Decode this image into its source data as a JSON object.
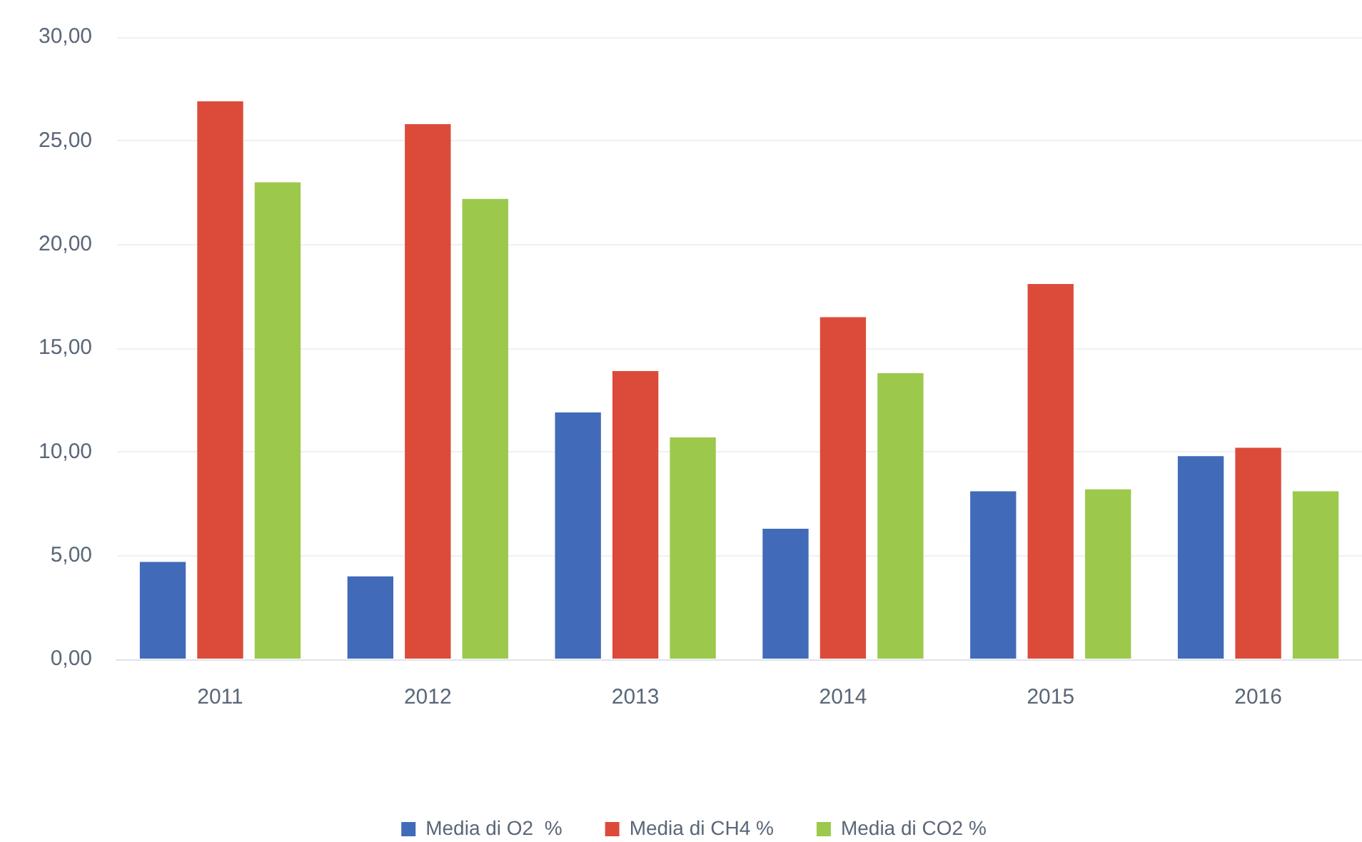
{
  "chart_data": {
    "type": "bar",
    "categories": [
      "2011",
      "2012",
      "2013",
      "2014",
      "2015",
      "2016"
    ],
    "series": [
      {
        "name": "Media di O2  %",
        "color": "#416bb9",
        "values": [
          4.7,
          4.0,
          11.9,
          6.3,
          8.1,
          9.8
        ]
      },
      {
        "name": "Media di CH4 %",
        "color": "#dc4b3a",
        "values": [
          26.9,
          25.8,
          13.9,
          16.5,
          18.1,
          10.2
        ]
      },
      {
        "name": "Media di CO2 %",
        "color": "#9cc84c",
        "values": [
          23.0,
          22.2,
          10.7,
          13.8,
          8.2,
          8.1
        ]
      }
    ],
    "ylim": [
      0,
      30
    ],
    "yticks": [
      {
        "value": 0,
        "label": "0,00"
      },
      {
        "value": 5,
        "label": "5,00"
      },
      {
        "value": 10,
        "label": "10,00"
      },
      {
        "value": 15,
        "label": "15,00"
      },
      {
        "value": 20,
        "label": "20,00"
      },
      {
        "value": 25,
        "label": "25,00"
      },
      {
        "value": 30,
        "label": "30,00"
      }
    ],
    "grid": "y",
    "legend": "bottom"
  }
}
